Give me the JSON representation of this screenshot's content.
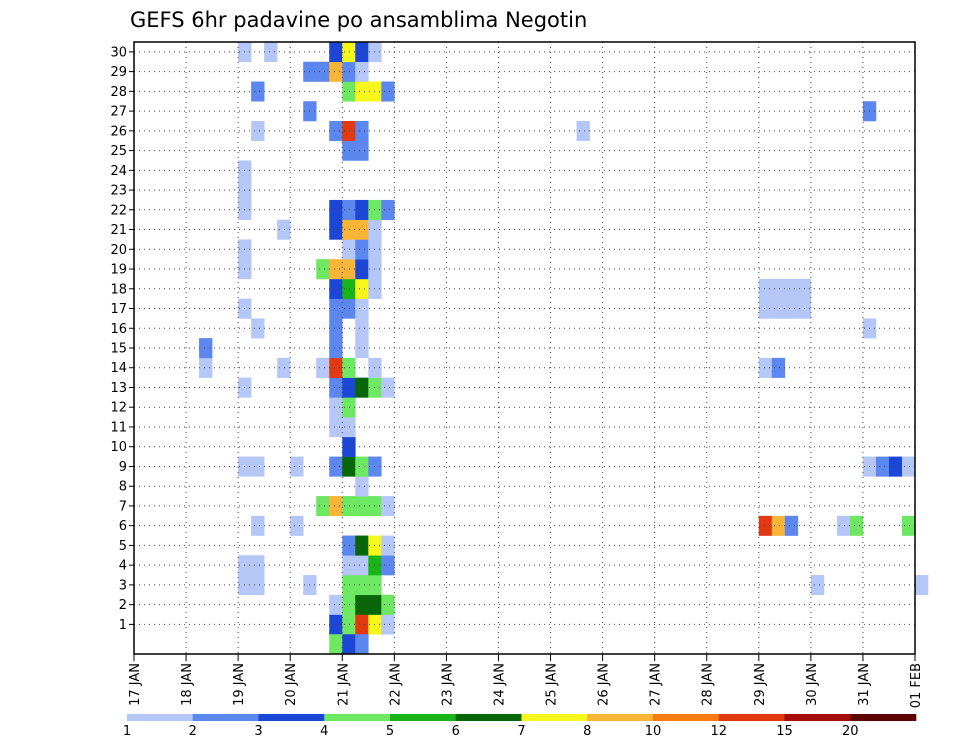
{
  "chart_data": {
    "type": "heatmap",
    "title": "GEFS 6hr padavine po ansamblima Negotin",
    "xlabel": "",
    "ylabel": "",
    "x_tick_labels": [
      "17 JAN",
      "18 JAN",
      "19 JAN",
      "20 JAN",
      "21 JAN",
      "22 JAN",
      "23 JAN",
      "24 JAN",
      "25 JAN",
      "26 JAN",
      "27 JAN",
      "28 JAN",
      "29 JAN",
      "30 JAN",
      "31 JAN",
      "01 FEB"
    ],
    "y_tick_labels": [
      "1",
      "2",
      "3",
      "4",
      "5",
      "6",
      "7",
      "8",
      "9",
      "10",
      "11",
      "12",
      "13",
      "14",
      "15",
      "16",
      "17",
      "18",
      "19",
      "20",
      "21",
      "22",
      "23",
      "24",
      "25",
      "26",
      "27",
      "28",
      "29",
      "30"
    ],
    "time_step_hours": 6,
    "grid": true,
    "legend_placement": "bottom",
    "colorbar": {
      "thresholds": [
        "1",
        "2",
        "3",
        "4",
        "5",
        "6",
        "7",
        "8",
        "10",
        "12",
        "15",
        "20"
      ],
      "colors": [
        "#b4c7f7",
        "#5c87ee",
        "#1c46d6",
        "#6ee862",
        "#19b419",
        "#076607",
        "#f7f71c",
        "#f9b537",
        "#f97c11",
        "#e13a11",
        "#a50d0d",
        "#5e0404"
      ]
    },
    "cells": [
      {
        "member": 1,
        "date": "20 JAN 18",
        "level": 3
      },
      {
        "member": 1,
        "date": "21 JAN 00",
        "level": 4
      },
      {
        "member": 1,
        "date": "21 JAN 06",
        "level": 10
      },
      {
        "member": 1,
        "date": "21 JAN 12",
        "level": 7
      },
      {
        "member": 1,
        "date": "21 JAN 18",
        "level": 1
      },
      {
        "member": 2,
        "date": "20 JAN 18",
        "level": 1
      },
      {
        "member": 2,
        "date": "21 JAN 00",
        "level": 4
      },
      {
        "member": 2,
        "date": "21 JAN 06",
        "level": 6
      },
      {
        "member": 2,
        "date": "21 JAN 12",
        "level": 6
      },
      {
        "member": 2,
        "date": "21 JAN 18",
        "level": 4
      },
      {
        "member": 3,
        "date": "19 JAN 00",
        "level": 1
      },
      {
        "member": 3,
        "date": "19 JAN 06",
        "level": 1
      },
      {
        "member": 3,
        "date": "20 JAN 06",
        "level": 1
      },
      {
        "member": 3,
        "date": "21 JAN 00",
        "level": 4
      },
      {
        "member": 3,
        "date": "21 JAN 06",
        "level": 4
      },
      {
        "member": 3,
        "date": "21 JAN 12",
        "level": 4
      },
      {
        "member": 3,
        "date": "30 JAN 00",
        "level": 1
      },
      {
        "member": 3,
        "date": "01 FEB 00",
        "level": 1
      },
      {
        "member": 4,
        "date": "19 JAN 00",
        "level": 1
      },
      {
        "member": 4,
        "date": "19 JAN 06",
        "level": 1
      },
      {
        "member": 4,
        "date": "21 JAN 00",
        "level": 1
      },
      {
        "member": 4,
        "date": "21 JAN 06",
        "level": 1
      },
      {
        "member": 4,
        "date": "21 JAN 12",
        "level": 5
      },
      {
        "member": 4,
        "date": "21 JAN 18",
        "level": 2
      },
      {
        "member": 5,
        "date": "21 JAN 00",
        "level": 2
      },
      {
        "member": 5,
        "date": "21 JAN 06",
        "level": 6
      },
      {
        "member": 5,
        "date": "21 JAN 12",
        "level": 7
      },
      {
        "member": 5,
        "date": "21 JAN 18",
        "level": 1
      },
      {
        "member": 6,
        "date": "19 JAN 06",
        "level": 1
      },
      {
        "member": 6,
        "date": "20 JAN 00",
        "level": 1
      },
      {
        "member": 6,
        "date": "29 JAN 00",
        "level": 10
      },
      {
        "member": 6,
        "date": "29 JAN 06",
        "level": 8
      },
      {
        "member": 6,
        "date": "29 JAN 12",
        "level": 2
      },
      {
        "member": 6,
        "date": "30 JAN 12",
        "level": 1
      },
      {
        "member": 6,
        "date": "30 JAN 18",
        "level": 4
      },
      {
        "member": 6,
        "date": "31 JAN 18",
        "level": 4
      },
      {
        "member": 7,
        "date": "20 JAN 12",
        "level": 4
      },
      {
        "member": 7,
        "date": "20 JAN 18",
        "level": 8
      },
      {
        "member": 7,
        "date": "21 JAN 00",
        "level": 4
      },
      {
        "member": 7,
        "date": "21 JAN 06",
        "level": 4
      },
      {
        "member": 7,
        "date": "21 JAN 12",
        "level": 4
      },
      {
        "member": 7,
        "date": "21 JAN 18",
        "level": 1
      },
      {
        "member": 8,
        "date": "21 JAN 06",
        "level": 1
      },
      {
        "member": 9,
        "date": "19 JAN 00",
        "level": 1
      },
      {
        "member": 9,
        "date": "19 JAN 06",
        "level": 1
      },
      {
        "member": 9,
        "date": "20 JAN 00",
        "level": 1
      },
      {
        "member": 9,
        "date": "20 JAN 18",
        "level": 2
      },
      {
        "member": 9,
        "date": "21 JAN 00",
        "level": 6
      },
      {
        "member": 9,
        "date": "21 JAN 06",
        "level": 4
      },
      {
        "member": 9,
        "date": "21 JAN 12",
        "level": 2
      },
      {
        "member": 9,
        "date": "31 JAN 00",
        "level": 1
      },
      {
        "member": 9,
        "date": "31 JAN 06",
        "level": 2
      },
      {
        "member": 9,
        "date": "31 JAN 12",
        "level": 3
      },
      {
        "member": 9,
        "date": "31 JAN 18",
        "level": 1
      },
      {
        "member": 10,
        "date": "21 JAN 00",
        "level": 3
      },
      {
        "member": 11,
        "date": "20 JAN 18",
        "level": 1
      },
      {
        "member": 11,
        "date": "21 JAN 00",
        "level": 1
      },
      {
        "member": 12,
        "date": "20 JAN 18",
        "level": 1
      },
      {
        "member": 12,
        "date": "21 JAN 00",
        "level": 4
      },
      {
        "member": 13,
        "date": "19 JAN 00",
        "level": 1
      },
      {
        "member": 13,
        "date": "20 JAN 18",
        "level": 2
      },
      {
        "member": 13,
        "date": "21 JAN 00",
        "level": 3
      },
      {
        "member": 13,
        "date": "21 JAN 06",
        "level": 6
      },
      {
        "member": 13,
        "date": "21 JAN 12",
        "level": 4
      },
      {
        "member": 13,
        "date": "21 JAN 18",
        "level": 1
      },
      {
        "member": 14,
        "date": "18 JAN 06",
        "level": 1
      },
      {
        "member": 14,
        "date": "19 JAN 18",
        "level": 1
      },
      {
        "member": 14,
        "date": "20 JAN 12",
        "level": 1
      },
      {
        "member": 14,
        "date": "20 JAN 18",
        "level": 10
      },
      {
        "member": 14,
        "date": "21 JAN 00",
        "level": 4
      },
      {
        "member": 14,
        "date": "21 JAN 12",
        "level": 1
      },
      {
        "member": 14,
        "date": "29 JAN 00",
        "level": 1
      },
      {
        "member": 14,
        "date": "29 JAN 06",
        "level": 2
      },
      {
        "member": 15,
        "date": "18 JAN 06",
        "level": 2
      },
      {
        "member": 15,
        "date": "20 JAN 18",
        "level": 2
      },
      {
        "member": 15,
        "date": "21 JAN 06",
        "level": 1
      },
      {
        "member": 16,
        "date": "19 JAN 06",
        "level": 1
      },
      {
        "member": 16,
        "date": "20 JAN 18",
        "level": 2
      },
      {
        "member": 16,
        "date": "21 JAN 06",
        "level": 1
      },
      {
        "member": 16,
        "date": "31 JAN 00",
        "level": 1
      },
      {
        "member": 17,
        "date": "19 JAN 00",
        "level": 1
      },
      {
        "member": 17,
        "date": "20 JAN 18",
        "level": 2
      },
      {
        "member": 17,
        "date": "21 JAN 00",
        "level": 2
      },
      {
        "member": 17,
        "date": "21 JAN 06",
        "level": 1
      },
      {
        "member": 17,
        "date": "29 JAN 00",
        "level": 1
      },
      {
        "member": 17,
        "date": "29 JAN 06",
        "level": 1
      },
      {
        "member": 17,
        "date": "29 JAN 12",
        "level": 1
      },
      {
        "member": 17,
        "date": "29 JAN 18",
        "level": 1
      },
      {
        "member": 18,
        "date": "20 JAN 18",
        "level": 3
      },
      {
        "member": 18,
        "date": "21 JAN 00",
        "level": 5
      },
      {
        "member": 18,
        "date": "21 JAN 06",
        "level": 7
      },
      {
        "member": 18,
        "date": "21 JAN 12",
        "level": 1
      },
      {
        "member": 18,
        "date": "29 JAN 00",
        "level": 1
      },
      {
        "member": 18,
        "date": "29 JAN 06",
        "level": 1
      },
      {
        "member": 18,
        "date": "29 JAN 12",
        "level": 1
      },
      {
        "member": 18,
        "date": "29 JAN 18",
        "level": 1
      },
      {
        "member": 19,
        "date": "19 JAN 00",
        "level": 1
      },
      {
        "member": 19,
        "date": "20 JAN 12",
        "level": 4
      },
      {
        "member": 19,
        "date": "20 JAN 18",
        "level": 8
      },
      {
        "member": 19,
        "date": "21 JAN 00",
        "level": 8
      },
      {
        "member": 19,
        "date": "21 JAN 06",
        "level": 3
      },
      {
        "member": 19,
        "date": "21 JAN 12",
        "level": 1
      },
      {
        "member": 20,
        "date": "19 JAN 00",
        "level": 1
      },
      {
        "member": 20,
        "date": "21 JAN 00",
        "level": 1
      },
      {
        "member": 20,
        "date": "21 JAN 06",
        "level": 2
      },
      {
        "member": 20,
        "date": "21 JAN 12",
        "level": 1
      },
      {
        "member": 21,
        "date": "19 JAN 18",
        "level": 1
      },
      {
        "member": 21,
        "date": "20 JAN 18",
        "level": 3
      },
      {
        "member": 21,
        "date": "21 JAN 00",
        "level": 8
      },
      {
        "member": 21,
        "date": "21 JAN 06",
        "level": 8
      },
      {
        "member": 21,
        "date": "21 JAN 12",
        "level": 1
      },
      {
        "member": 22,
        "date": "19 JAN 00",
        "level": 1
      },
      {
        "member": 22,
        "date": "20 JAN 18",
        "level": 3
      },
      {
        "member": 22,
        "date": "21 JAN 00",
        "level": 2
      },
      {
        "member": 22,
        "date": "21 JAN 06",
        "level": 3
      },
      {
        "member": 22,
        "date": "21 JAN 12",
        "level": 4
      },
      {
        "member": 22,
        "date": "21 JAN 18",
        "level": 2
      },
      {
        "member": 23,
        "date": "19 JAN 00",
        "level": 1
      },
      {
        "member": 24,
        "date": "19 JAN 00",
        "level": 1
      },
      {
        "member": 25,
        "date": "21 JAN 00",
        "level": 2
      },
      {
        "member": 25,
        "date": "21 JAN 06",
        "level": 2
      },
      {
        "member": 26,
        "date": "19 JAN 06",
        "level": 1
      },
      {
        "member": 26,
        "date": "20 JAN 18",
        "level": 2
      },
      {
        "member": 26,
        "date": "21 JAN 00",
        "level": 10
      },
      {
        "member": 26,
        "date": "21 JAN 06",
        "level": 2
      },
      {
        "member": 26,
        "date": "25 JAN 12",
        "level": 1
      },
      {
        "member": 27,
        "date": "20 JAN 06",
        "level": 2
      },
      {
        "member": 27,
        "date": "31 JAN 00",
        "level": 2
      },
      {
        "member": 28,
        "date": "19 JAN 06",
        "level": 2
      },
      {
        "member": 28,
        "date": "21 JAN 00",
        "level": 4
      },
      {
        "member": 28,
        "date": "21 JAN 06",
        "level": 7
      },
      {
        "member": 28,
        "date": "21 JAN 12",
        "level": 7
      },
      {
        "member": 28,
        "date": "21 JAN 18",
        "level": 2
      },
      {
        "member": 29,
        "date": "20 JAN 06",
        "level": 2
      },
      {
        "member": 29,
        "date": "20 JAN 12",
        "level": 2
      },
      {
        "member": 29,
        "date": "20 JAN 18",
        "level": 8
      },
      {
        "member": 29,
        "date": "21 JAN 00",
        "level": 2
      },
      {
        "member": 29,
        "date": "21 JAN 06",
        "level": 1
      },
      {
        "member": 30,
        "date": "19 JAN 00",
        "level": 1
      },
      {
        "member": 30,
        "date": "19 JAN 12",
        "level": 1
      },
      {
        "member": 30,
        "date": "20 JAN 18",
        "level": 3
      },
      {
        "member": 30,
        "date": "21 JAN 00",
        "level": 7
      },
      {
        "member": 30,
        "date": "21 JAN 06",
        "level": 3
      },
      {
        "member": 30,
        "date": "21 JAN 12",
        "level": 1
      },
      {
        "member": 0,
        "date": "20 JAN 18",
        "level": 4
      },
      {
        "member": 0,
        "date": "21 JAN 00",
        "level": 3
      },
      {
        "member": 0,
        "date": "21 JAN 06",
        "level": 2
      }
    ]
  }
}
